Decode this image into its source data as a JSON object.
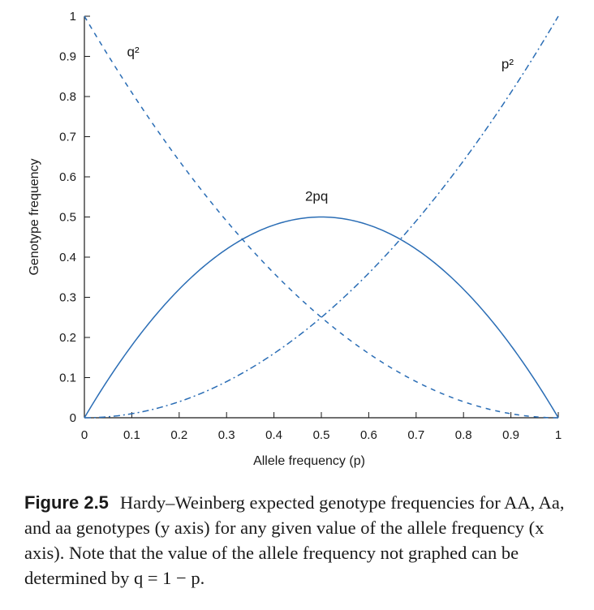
{
  "chart_data": {
    "type": "line",
    "xlabel": "Allele frequency (p)",
    "ylabel": "Genotype frequency",
    "xlim": [
      0,
      1
    ],
    "ylim": [
      0,
      1
    ],
    "xticks": [
      "0",
      "0.1",
      "0.2",
      "0.3",
      "0.4",
      "0.5",
      "0.6",
      "0.7",
      "0.8",
      "0.9",
      "1"
    ],
    "yticks": [
      "0",
      "0.1",
      "0.2",
      "0.3",
      "0.4",
      "0.5",
      "0.6",
      "0.7",
      "0.8",
      "0.9",
      "1"
    ],
    "grid": false,
    "series": [
      {
        "name": "q²",
        "style": "dashed",
        "x": [
          0,
          0.1,
          0.2,
          0.3,
          0.4,
          0.5,
          0.6,
          0.7,
          0.8,
          0.9,
          1
        ],
        "y": [
          1,
          0.81,
          0.64,
          0.49,
          0.36,
          0.25,
          0.16,
          0.09,
          0.04,
          0.01,
          0
        ]
      },
      {
        "name": "2pq",
        "style": "solid",
        "x": [
          0,
          0.1,
          0.2,
          0.3,
          0.4,
          0.5,
          0.6,
          0.7,
          0.8,
          0.9,
          1
        ],
        "y": [
          0,
          0.18,
          0.32,
          0.42,
          0.48,
          0.5,
          0.48,
          0.42,
          0.32,
          0.18,
          0
        ]
      },
      {
        "name": "p²",
        "style": "dash-dot",
        "x": [
          0,
          0.1,
          0.2,
          0.3,
          0.4,
          0.5,
          0.6,
          0.7,
          0.8,
          0.9,
          1
        ],
        "y": [
          0,
          0.01,
          0.04,
          0.09,
          0.16,
          0.25,
          0.36,
          0.49,
          0.64,
          0.81,
          1
        ]
      }
    ],
    "line_color": "#2a6db5"
  },
  "caption": {
    "figure_number": "Figure 2.5",
    "text": "Hardy–Weinberg expected genotype frequencies for AA, Aa, and aa genotypes (y axis) for any given value of the allele frequency (x axis). Note that the value of the allele frequency not graphed can be determined by q = 1 − p."
  }
}
